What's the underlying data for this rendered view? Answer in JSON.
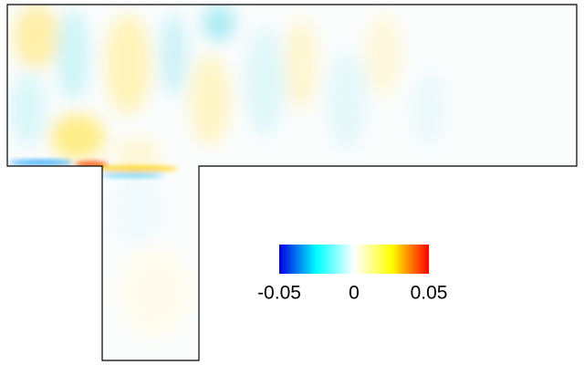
{
  "chart_data": {
    "type": "colorbar",
    "colormap": [
      "#0000e0",
      "#00ffff",
      "#ffffff",
      "#ffff00",
      "#ff0000"
    ],
    "clim": [
      -0.05,
      0.05
    ],
    "cticks": [
      -0.05,
      0,
      0.05
    ]
  }
}
